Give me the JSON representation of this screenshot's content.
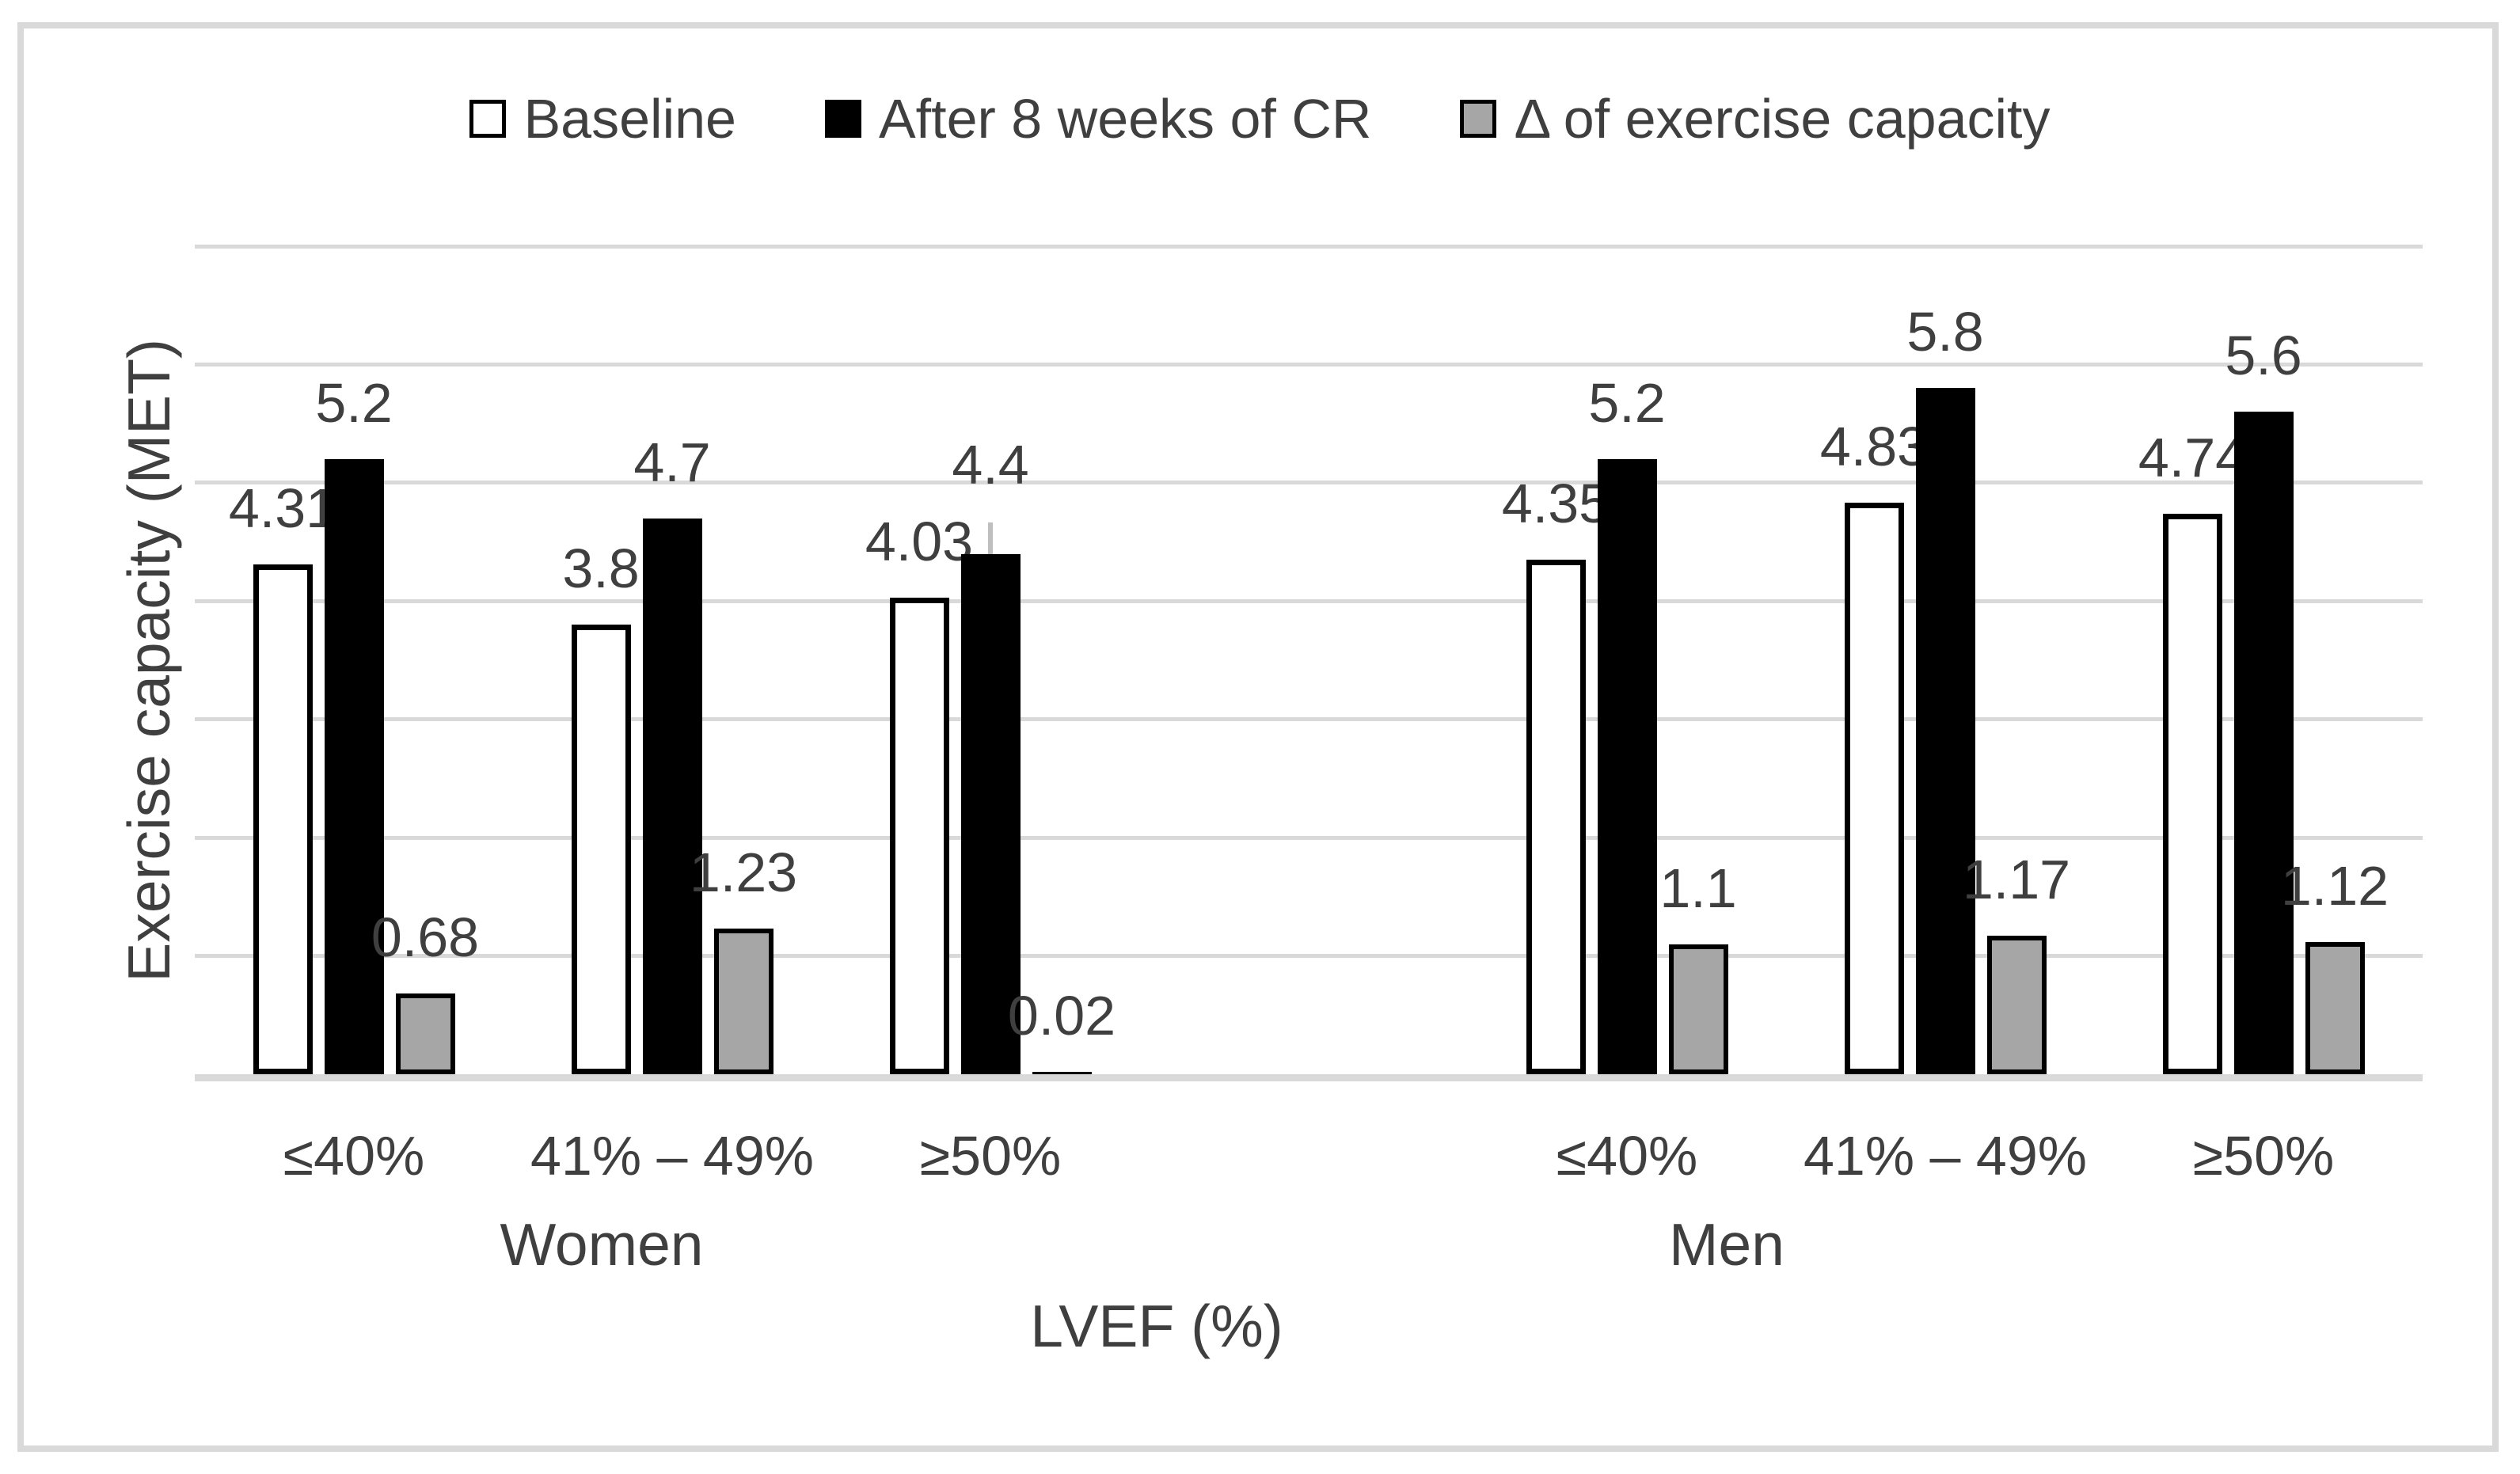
{
  "figure": {
    "background": "#ffffff",
    "frame_border_color": "#d9d9d9"
  },
  "legend": {
    "items": [
      {
        "label": "Baseline",
        "fill": "#ffffff",
        "border": "#000000"
      },
      {
        "label": "After 8 weeks of CR",
        "fill": "#000000",
        "border": "#000000"
      },
      {
        "label": "Δ of exercise capacity",
        "fill": "#a6a6a6",
        "border": "#000000"
      }
    ]
  },
  "chart_data": {
    "type": "bar",
    "title": "",
    "ylabel": "Exercise capacity (MET)",
    "xlabel": "LVEF (%)",
    "ylim": [
      0,
      7
    ],
    "grid_step": 1,
    "grid": true,
    "gridline_color": "#d9d9d9",
    "axis_line_color": "#d9d9d9",
    "label_text_color": "#3f3f3f",
    "legend_position": "top",
    "series_names": [
      "Baseline",
      "After 8 weeks of CR",
      "Δ of exercise capacity"
    ],
    "groups": [
      {
        "label": "Women",
        "categories": [
          "≤40%",
          "41% – 49%",
          "≥50%"
        ],
        "series": [
          {
            "name": "Baseline",
            "values": [
              4.31,
              3.8,
              4.03
            ],
            "labels": [
              "4.31",
              "3.8",
              "4.03"
            ]
          },
          {
            "name": "After 8 weeks of CR",
            "values": [
              5.2,
              4.7,
              4.4
            ],
            "labels": [
              "5.2",
              "4.7",
              "4.4"
            ]
          },
          {
            "name": "Δ of exercise capacity",
            "values": [
              0.68,
              1.23,
              0.02
            ],
            "labels": [
              "0.68",
              "1.23",
              "0.02"
            ]
          }
        ]
      },
      {
        "label": "Men",
        "categories": [
          "≤40%",
          "41% – 49%",
          "≥50%"
        ],
        "series": [
          {
            "name": "Baseline",
            "values": [
              4.35,
              4.83,
              4.74
            ],
            "labels": [
              "4.35",
              "4.83",
              "4.74"
            ]
          },
          {
            "name": "After 8 weeks of CR",
            "values": [
              5.2,
              5.8,
              5.6
            ],
            "labels": [
              "5.2",
              "5.8",
              "5.6"
            ]
          },
          {
            "name": "Δ of exercise capacity",
            "values": [
              1.1,
              1.17,
              1.12
            ],
            "labels": [
              "1.1",
              "1.17",
              "1.12"
            ]
          }
        ]
      }
    ],
    "annotations": [
      {
        "type": "error-whisker",
        "group": 0,
        "category": 2,
        "series": 1,
        "color": "#bfbfbf"
      }
    ]
  }
}
